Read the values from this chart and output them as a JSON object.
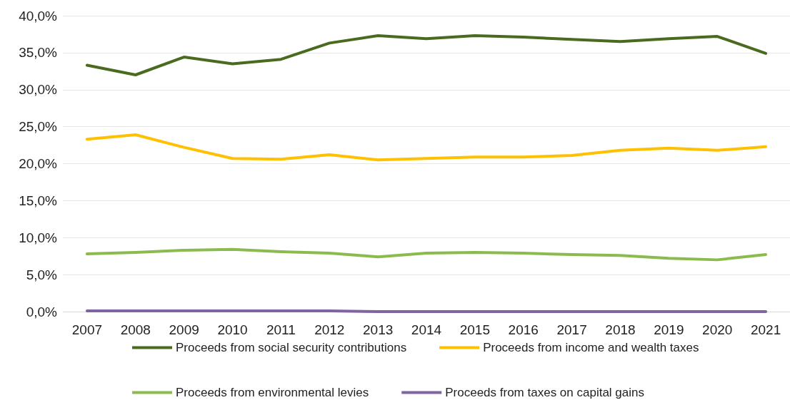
{
  "chart_data": {
    "type": "line",
    "categories": [
      "2007",
      "2008",
      "2009",
      "2010",
      "2011",
      "2012",
      "2013",
      "2014",
      "2015",
      "2016",
      "2017",
      "2018",
      "2019",
      "2020",
      "2021"
    ],
    "series": [
      {
        "name": "Proceeds from social security contributions",
        "color": "#4a6a1f",
        "values": [
          33.3,
          32.0,
          34.4,
          33.5,
          34.1,
          36.3,
          37.3,
          36.9,
          37.3,
          37.1,
          36.8,
          36.5,
          36.9,
          37.2,
          34.9
        ]
      },
      {
        "name": "Proceeds from income and wealth taxes",
        "color": "#ffc000",
        "values": [
          23.3,
          23.9,
          22.2,
          20.7,
          20.6,
          21.2,
          20.5,
          20.7,
          20.9,
          20.9,
          21.1,
          21.8,
          22.1,
          21.8,
          22.3
        ]
      },
      {
        "name": "Proceeds from environmental levies",
        "color": "#8bbb4f",
        "values": [
          7.8,
          8.0,
          8.3,
          8.4,
          8.1,
          7.9,
          7.4,
          7.9,
          8.0,
          7.9,
          7.7,
          7.6,
          7.2,
          7.0,
          7.7
        ]
      },
      {
        "name": "Proceeds from taxes on capital gains",
        "color": "#8064a2",
        "values": [
          0.1,
          0.1,
          0.1,
          0.1,
          0.1,
          0.1,
          0.0,
          0.0,
          0.0,
          0.0,
          0.0,
          0.0,
          0.0,
          0.0,
          0.0
        ]
      }
    ],
    "ylim": [
      0,
      40
    ],
    "yticks": [
      {
        "value": 0,
        "label": "0,0%"
      },
      {
        "value": 5,
        "label": "5,0%"
      },
      {
        "value": 10,
        "label": "10,0%"
      },
      {
        "value": 15,
        "label": "15,0%"
      },
      {
        "value": 20,
        "label": "20,0%"
      },
      {
        "value": 25,
        "label": "25,0%"
      },
      {
        "value": 30,
        "label": "30,0%"
      },
      {
        "value": 35,
        "label": "35,0%"
      },
      {
        "value": 40,
        "label": "40,0%"
      }
    ],
    "grid": "y",
    "legend": "bottom",
    "marker": "none",
    "line_style": "solid"
  }
}
